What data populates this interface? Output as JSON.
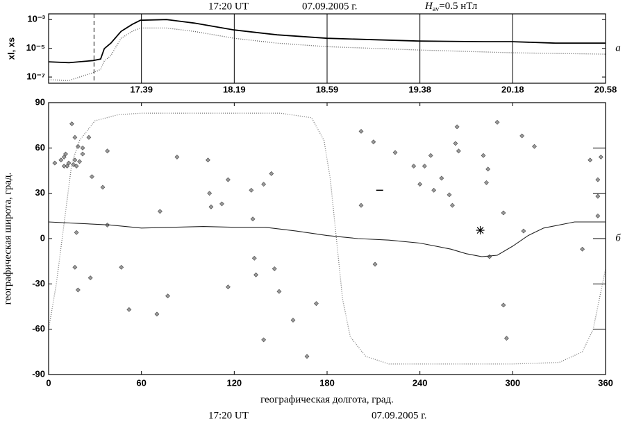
{
  "chart_data": [
    {
      "type": "line",
      "header": {
        "time": "17:20 UT",
        "date": "07.09.2005 г.",
        "symbol": "H",
        "subscript": "av",
        "text": "=0.5 нТл"
      },
      "panel_label": "а",
      "y_label": "xl, xs",
      "log_y": true,
      "grid": true,
      "xlim": [
        0,
        6
      ],
      "xticks": [
        {
          "value": 1,
          "label": "17.39"
        },
        {
          "value": 2,
          "label": "18.19"
        },
        {
          "value": 3,
          "label": "18.59"
        },
        {
          "value": 4,
          "label": "19.38"
        },
        {
          "value": 5,
          "label": "20.18"
        },
        {
          "value": 6,
          "label": "20.58"
        }
      ],
      "ylim": [
        3.7e-08,
        0.0025
      ],
      "yticks": [
        {
          "value": 0.001,
          "label": "10⁻³"
        },
        {
          "value": 1e-05,
          "label": "10⁻⁵"
        },
        {
          "value": 1e-07,
          "label": "10⁻⁷"
        }
      ],
      "dashed_x": 0.49,
      "series": [
        {
          "color": "#000000",
          "style": "solid",
          "x": [
            0,
            0.22,
            0.48,
            0.56,
            0.6,
            0.67,
            0.78,
            0.9,
            0.99,
            1.27,
            1.57,
            2.0,
            2.46,
            3.0,
            3.49,
            3.99,
            4.7,
            5.0,
            5.46,
            6.0
          ],
          "values": [
            1.15e-06,
            1e-06,
            1.4e-06,
            1.8e-06,
            9.5e-06,
            2.3e-05,
            0.00015,
            0.00046,
            0.0009,
            0.001,
            0.00057,
            0.00019,
            8.7e-05,
            5e-05,
            4e-05,
            3.2e-05,
            2.9e-05,
            2.9e-05,
            2.3e-05,
            2.3e-05
          ]
        },
        {
          "color": "#555555",
          "style": "dotted",
          "x": [
            0,
            0.22,
            0.48,
            0.56,
            0.6,
            0.67,
            0.78,
            0.9,
            0.99,
            1.27,
            1.57,
            2.0,
            2.46,
            3.0,
            3.99,
            5.0,
            6.0
          ],
          "values": [
            6.5e-08,
            5.8e-08,
            2e-07,
            3.4e-07,
            1.3e-06,
            3.1e-06,
            5e-05,
            0.00015,
            0.00026,
            0.00026,
            0.00015,
            5e-05,
            2.3e-05,
            1.3e-05,
            7.6e-06,
            4.9e-06,
            3.9e-06
          ]
        }
      ]
    },
    {
      "type": "scatter",
      "panel_label": "б",
      "x_label": "географическая долгота, град.",
      "y_label": "географическая широта, град.",
      "footer": {
        "time": "17:20 UT",
        "date": "07.09.2005 г."
      },
      "xlim": [
        0,
        360
      ],
      "xticks": [
        0,
        60,
        120,
        180,
        240,
        300,
        360
      ],
      "ylim": [
        -90,
        90
      ],
      "yticks": [
        90,
        60,
        30,
        0,
        -30,
        -60,
        -90
      ],
      "series": [
        {
          "color": "#9a9a9a",
          "marker": "diamond",
          "x": [
            15,
            4,
            8,
            10,
            11,
            12,
            10,
            13,
            16,
            17,
            18,
            19,
            20,
            22,
            17,
            22,
            26,
            28,
            35,
            38,
            38,
            18,
            17,
            19,
            27,
            47,
            52,
            70,
            72,
            77,
            83,
            103,
            104,
            105,
            112,
            116,
            116,
            131,
            133,
            134,
            139,
            144,
            132,
            139,
            146,
            149,
            158,
            173,
            167,
            202,
            202,
            210,
            211,
            224,
            236,
            240,
            243,
            247,
            249,
            254,
            259,
            261,
            263,
            265,
            264,
            281,
            283,
            284,
            285,
            290,
            294,
            294,
            296,
            307,
            306,
            314,
            350,
            357,
            355,
            355,
            355,
            345
          ],
          "values": [
            76,
            50,
            52,
            54,
            56,
            48,
            48,
            50,
            49,
            52,
            48,
            61,
            51,
            56,
            67,
            60,
            67,
            41,
            34,
            58,
            9,
            4,
            -19,
            -34,
            -26,
            -19,
            -47,
            -50,
            18,
            -38,
            54,
            52,
            30,
            21,
            23,
            39,
            -32,
            32,
            -13,
            -24,
            36,
            43,
            13,
            -67,
            -20,
            -35,
            -54,
            -43,
            -78,
            71,
            22,
            64,
            -17,
            57,
            48,
            36,
            48,
            55,
            32,
            40,
            29,
            22,
            63,
            58,
            74,
            55,
            37,
            46,
            -12,
            77,
            17,
            -44,
            -66,
            5,
            68,
            61,
            52,
            54,
            39,
            28,
            15,
            -7
          ]
        },
        {
          "color": "#000000",
          "marker": "star",
          "x": [
            279
          ],
          "values": [
            5.5
          ]
        },
        {
          "color": "#000000",
          "marker": "dash",
          "x": [
            214
          ],
          "values": [
            32
          ]
        },
        {
          "color": "#222222",
          "style": "solid",
          "x": [
            0,
            20,
            40,
            60,
            80,
            100,
            120,
            140,
            160,
            180,
            200,
            220,
            240,
            260,
            270,
            280,
            290,
            300,
            310,
            320,
            340,
            360
          ],
          "values": [
            11,
            10,
            9,
            7,
            7.5,
            8,
            7.5,
            7.5,
            5,
            2,
            0,
            -1,
            -3,
            -7,
            -10,
            -12,
            -11,
            -5,
            2,
            7,
            11,
            11
          ]
        },
        {
          "color": "#777777",
          "style": "dotted",
          "x": [
            0,
            5,
            10,
            15,
            20,
            30,
            45,
            60,
            100,
            150,
            170,
            178,
            182,
            186,
            190,
            195,
            205,
            220,
            300,
            330,
            345,
            352,
            358,
            360
          ],
          "values": [
            -60,
            -30,
            10,
            50,
            65,
            78,
            82,
            83,
            83,
            83,
            80,
            65,
            40,
            0,
            -40,
            -65,
            -78,
            -83,
            -83,
            -82,
            -75,
            -60,
            -30,
            -20
          ]
        }
      ]
    }
  ]
}
